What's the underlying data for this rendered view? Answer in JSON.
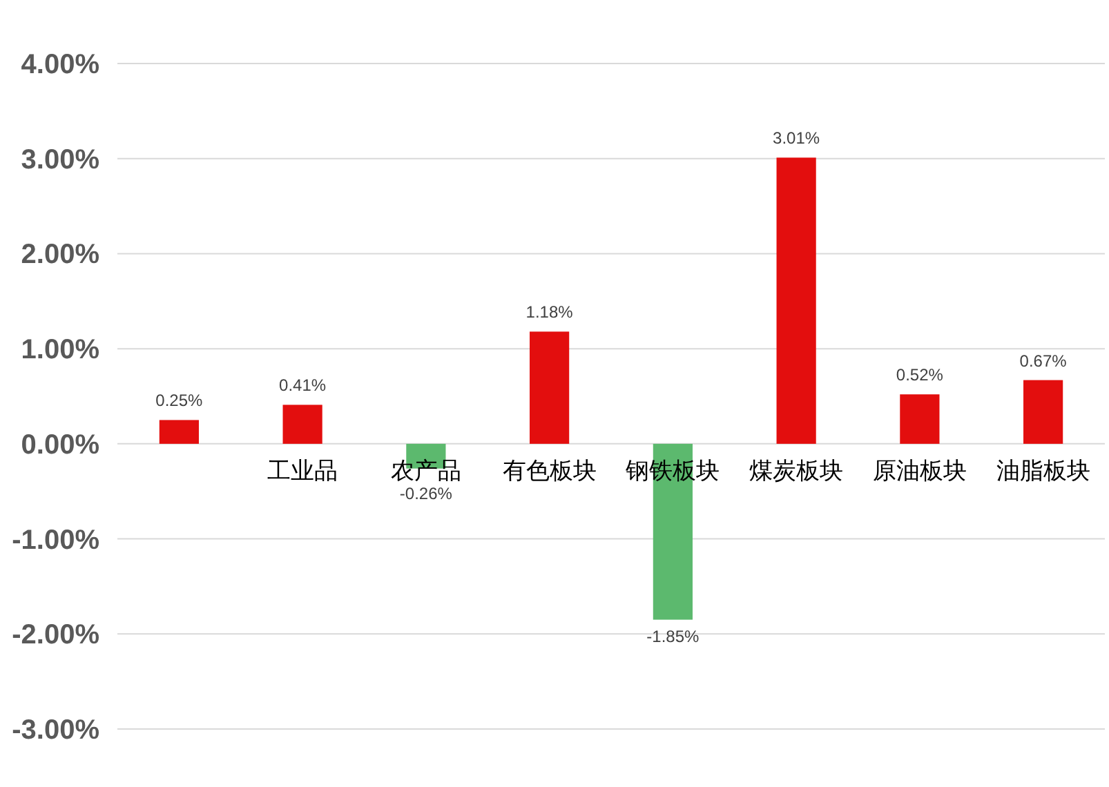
{
  "chart_data": {
    "type": "bar",
    "categories": [
      null,
      "工业品",
      "农产品",
      "有色板块",
      "钢铁板块",
      "煤炭板块",
      "原油板块",
      "油脂板块"
    ],
    "values": [
      0.25,
      0.41,
      -0.26,
      1.18,
      -1.85,
      3.01,
      0.52,
      0.67
    ],
    "colors": [
      "#e30e0e",
      "#e30e0e",
      "#5cb96e",
      "#e30e0e",
      "#5cb96e",
      "#e30e0e",
      "#e30e0e",
      "#e30e0e"
    ],
    "value_labels": [
      "0.25%",
      "0.41%",
      "-0.26%",
      "1.18%",
      "-1.85%",
      "3.01%",
      "0.52%",
      "0.67%"
    ],
    "ylim": [
      -3,
      4
    ],
    "yticks": [
      {
        "value": -3,
        "label": "-3.00%"
      },
      {
        "value": -2,
        "label": "-2.00%"
      },
      {
        "value": -1,
        "label": "-1.00%"
      },
      {
        "value": 0,
        "label": "0.00%"
      },
      {
        "value": 1,
        "label": "1.00%"
      },
      {
        "value": 2,
        "label": "2.00%"
      },
      {
        "value": 3,
        "label": "3.00%"
      },
      {
        "value": 4,
        "label": "4.00%"
      }
    ],
    "grid": "y"
  }
}
